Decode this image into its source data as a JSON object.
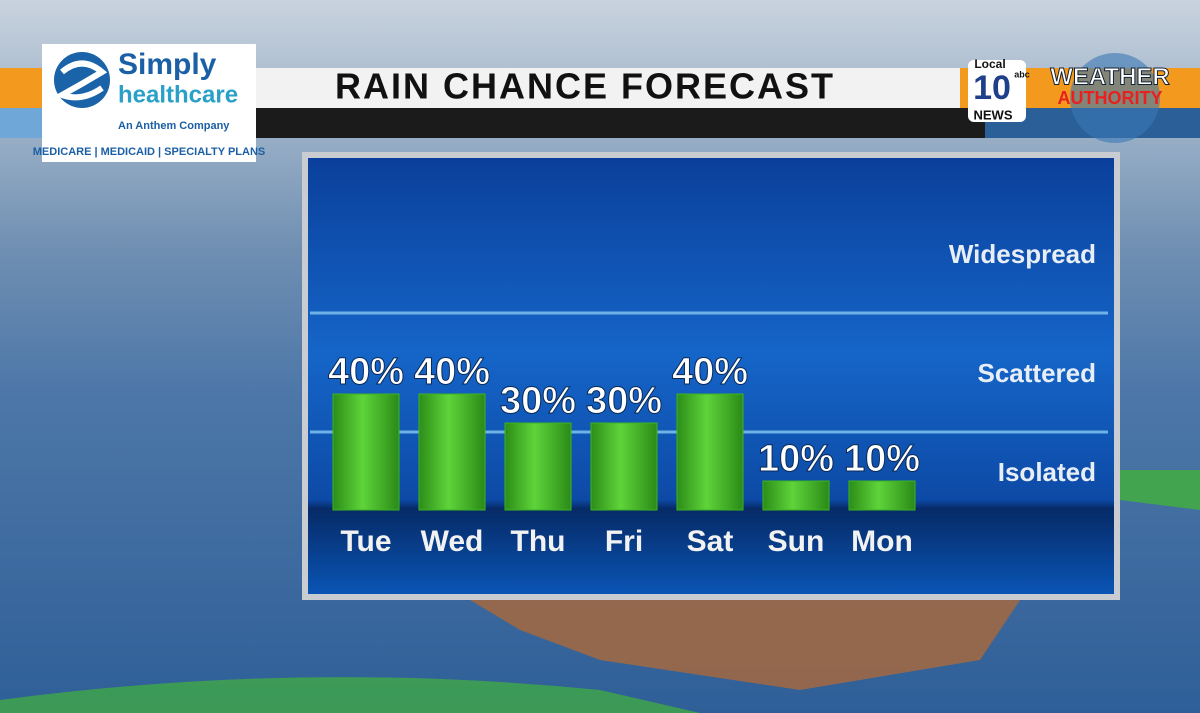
{
  "chart_data": {
    "type": "bar",
    "title": "RAIN CHANCE FORECAST",
    "categories": [
      "Tue",
      "Wed",
      "Thu",
      "Fri",
      "Sat",
      "Sun",
      "Mon"
    ],
    "values": [
      40,
      40,
      30,
      30,
      40,
      10,
      10
    ],
    "value_labels": [
      "40%",
      "40%",
      "30%",
      "30%",
      "40%",
      "10%",
      "10%"
    ],
    "color": "#3cb521",
    "bands": [
      "Isolated",
      "Scattered",
      "Widespread"
    ]
  },
  "sponsor": {
    "name_1": "Simply",
    "name_2": "healthcare",
    "tagline": "An Anthem Company",
    "plans": "MEDICARE | MEDICAID | SPECIALTY PLANS"
  },
  "station": {
    "local": "Local",
    "number": "10",
    "network": "abc",
    "news": "NEWS",
    "brand_1": "WEATHER",
    "brand_2": "AUTHORITY"
  }
}
